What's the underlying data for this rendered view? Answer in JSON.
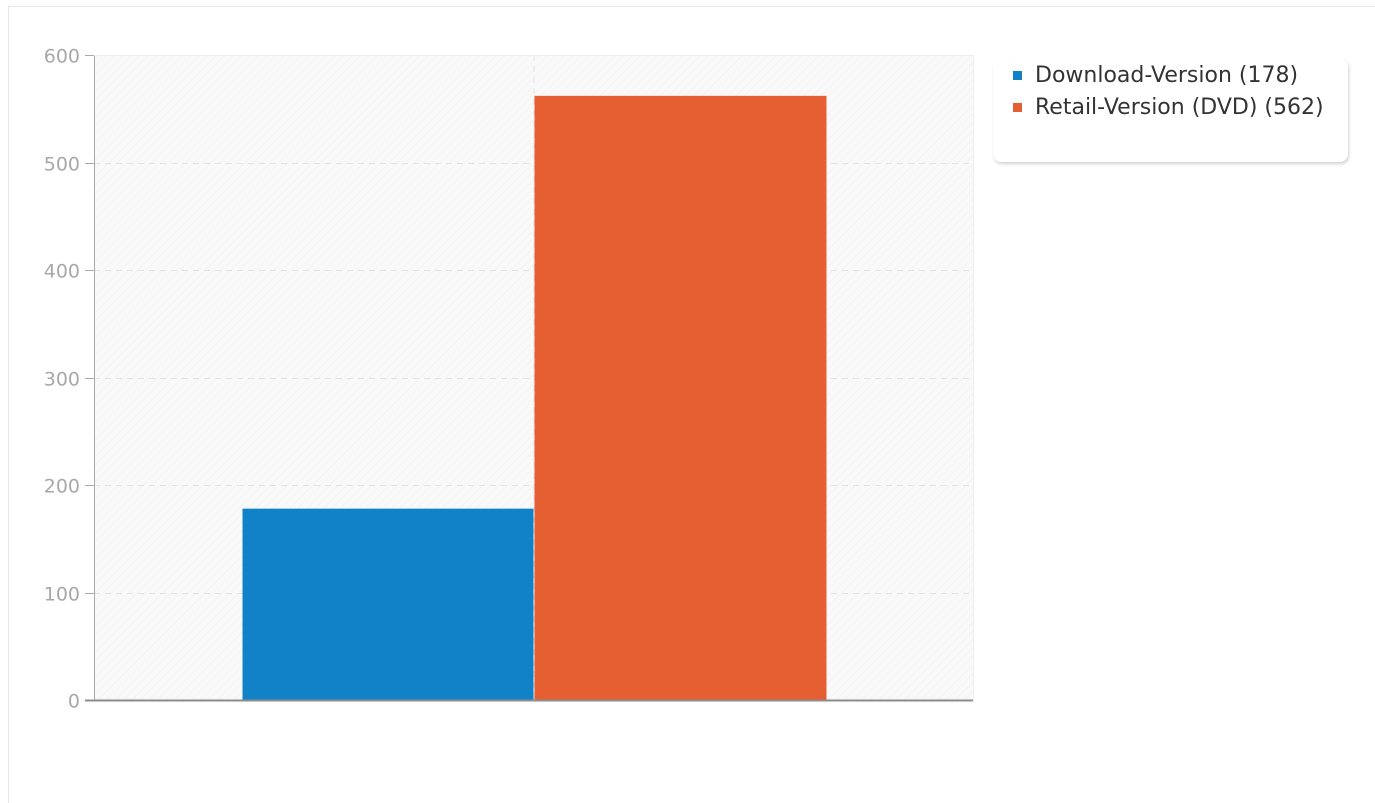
{
  "chart_data": {
    "type": "bar",
    "title": "",
    "xlabel": "",
    "ylabel": "",
    "ylim": [
      0,
      600
    ],
    "yticks": [
      0,
      100,
      200,
      300,
      400,
      500,
      600
    ],
    "grid": true,
    "legend_position": "top-right",
    "series": [
      {
        "name": "Download-Version (178)",
        "value": 178,
        "color": "#1282c8"
      },
      {
        "name": "Retail-Version (DVD) (562)",
        "value": 562,
        "color": "#e55f33"
      }
    ]
  }
}
